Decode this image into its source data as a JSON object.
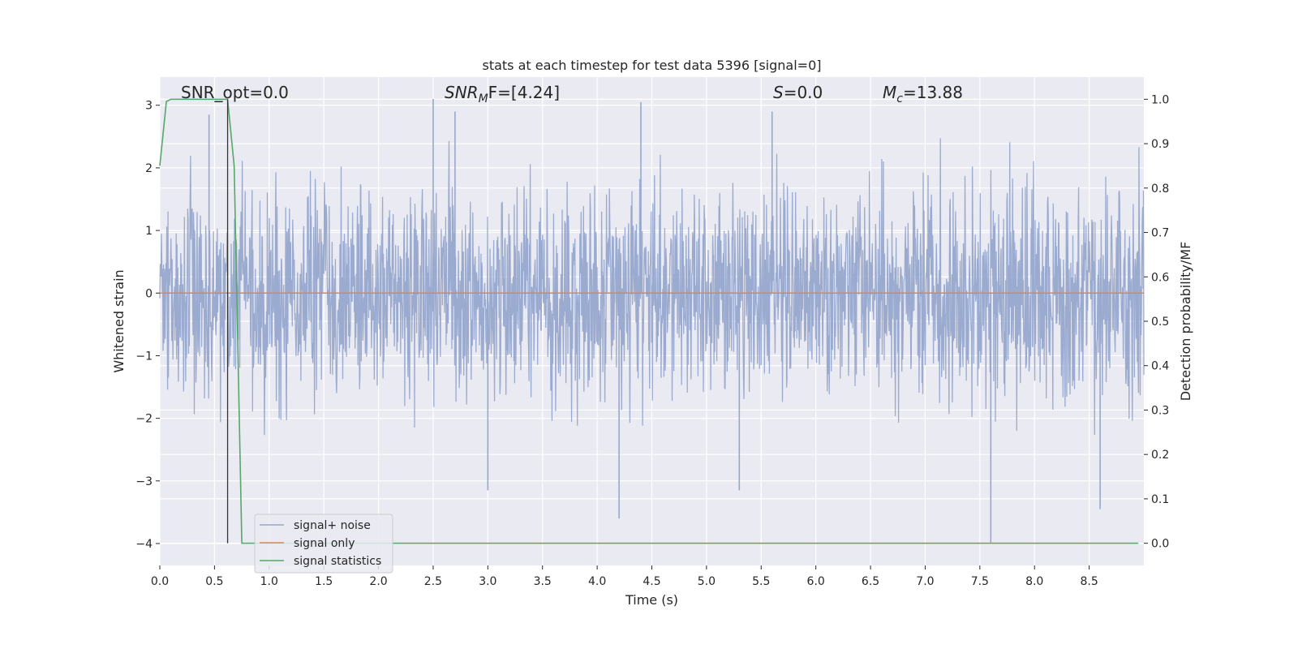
{
  "chart_data": {
    "type": "line",
    "title": "stats at each timestep for test data 5396 [signal=0]",
    "xlabel": "Time (s)",
    "ylabel": "Whitened strain",
    "y2label": "Detection probability/MF",
    "xlim": [
      0.0,
      9.0
    ],
    "ylim": [
      -4.35,
      3.45
    ],
    "y2lim": [
      -0.05,
      1.05
    ],
    "xticks": [
      "0.0",
      "0.5",
      "1.0",
      "1.5",
      "2.0",
      "2.5",
      "3.0",
      "3.5",
      "4.0",
      "4.5",
      "5.0",
      "5.5",
      "6.0",
      "6.5",
      "7.0",
      "7.5",
      "8.0",
      "8.5"
    ],
    "xtick_values": [
      0.0,
      0.5,
      1.0,
      1.5,
      2.0,
      2.5,
      3.0,
      3.5,
      4.0,
      4.5,
      5.0,
      5.5,
      6.0,
      6.5,
      7.0,
      7.5,
      8.0,
      8.5
    ],
    "yticks": [
      "3",
      "2",
      "1",
      "0",
      "−1",
      "−2",
      "−3",
      "−4"
    ],
    "ytick_values": [
      3,
      2,
      1,
      0,
      -1,
      -2,
      -3,
      -4
    ],
    "y2ticks": [
      "1.0",
      "0.9",
      "0.8",
      "0.7",
      "0.6",
      "0.5",
      "0.4",
      "0.3",
      "0.2",
      "0.1",
      "0.0"
    ],
    "y2tick_values": [
      1.0,
      0.9,
      0.8,
      0.7,
      0.6,
      0.5,
      0.4,
      0.3,
      0.2,
      0.1,
      0.0
    ],
    "grid": true,
    "legend_position": "lower-left",
    "annotations": {
      "snr_opt": "SNR_opt=0.0",
      "snr_mf_name": "SNR",
      "snr_mf_sub": "M",
      "snr_mf_tail": "F=[4.24]",
      "s_name": "S",
      "s_value": "=0.0",
      "mc_name": "M",
      "mc_sub": "c",
      "mc_value": "=13.88"
    },
    "marker_line_x": 0.62,
    "series": [
      {
        "name": "signal+ noise",
        "color": "#97a8cd",
        "axis": "left",
        "envelope_note": "dense noise, approx range",
        "y_min": -4.0,
        "y_max": 3.1,
        "peaks_x": [
          0.45,
          2.5,
          2.7,
          3.0,
          4.2,
          4.4,
          5.3,
          5.6,
          7.6,
          8.6
        ],
        "peaks_y": [
          2.85,
          3.1,
          2.9,
          -3.15,
          -3.6,
          3.05,
          -3.15,
          2.9,
          -4.0,
          -3.45
        ]
      },
      {
        "name": "signal only",
        "color": "#dd8452",
        "axis": "left",
        "x": [
          0.0,
          9.0
        ],
        "y": [
          0.0,
          0.0
        ]
      },
      {
        "name": "signal statistics",
        "color": "#55a868",
        "axis": "right",
        "x": [
          0.0,
          0.06,
          0.1,
          0.15,
          0.2,
          0.3,
          0.4,
          0.5,
          0.55,
          0.6,
          0.62,
          0.68,
          0.75,
          1.0,
          2.0,
          3.0,
          4.0,
          5.0,
          6.0,
          7.0,
          8.0,
          8.95
        ],
        "y": [
          0.85,
          0.995,
          1.0,
          1.0,
          1.0,
          1.0,
          1.0,
          1.0,
          1.0,
          1.0,
          1.0,
          0.85,
          0.0,
          0.0,
          0.0,
          0.0,
          0.0,
          0.0,
          0.0,
          0.0,
          0.0,
          0.0
        ]
      }
    ]
  }
}
